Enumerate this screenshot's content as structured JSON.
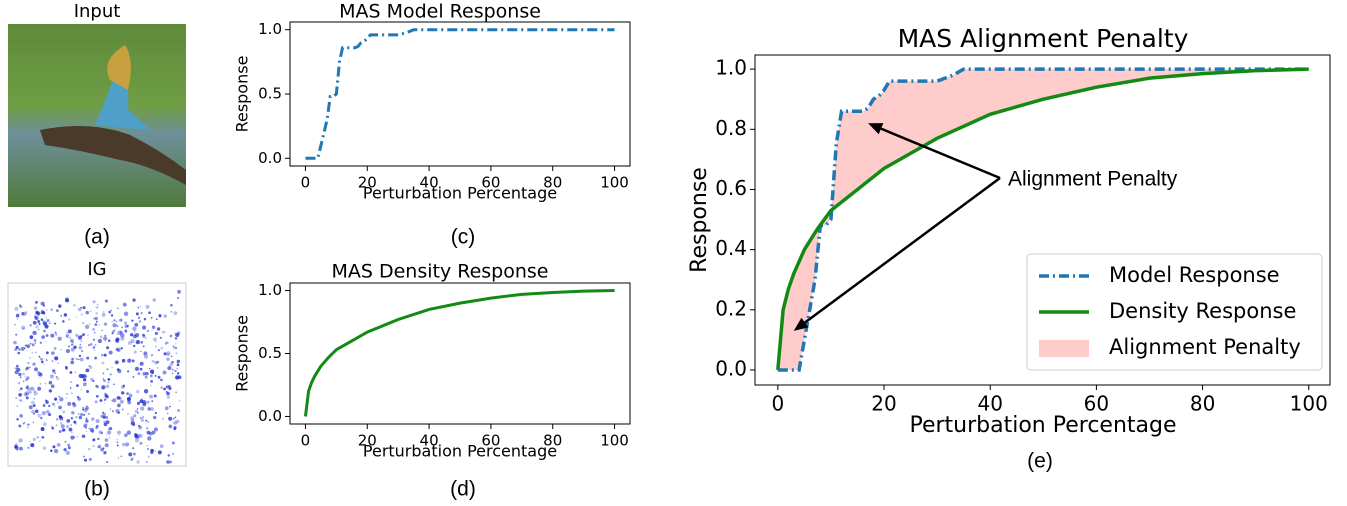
{
  "panels": {
    "a": {
      "title": "Input",
      "caption": "(a)"
    },
    "b": {
      "title": "IG",
      "caption": "(b)"
    }
  },
  "chart_data": [
    {
      "type": "line",
      "title": "MAS Model Response",
      "caption": "(c)",
      "x_label": "Perturbation Percentage",
      "y_label": "Response",
      "xlim": [
        -5,
        105
      ],
      "ylim": [
        -0.06,
        1.06
      ],
      "xticks": [
        0,
        20,
        40,
        60,
        80,
        100
      ],
      "yticks": [
        {
          "value": 0,
          "label": "0.0"
        },
        0.5,
        {
          "value": 1,
          "label": "1.0"
        }
      ],
      "series": [
        {
          "name": "Model Response",
          "color": "#1f77b4",
          "linestyle": "dashdot",
          "x": [
            0,
            4,
            5,
            6,
            7,
            8,
            9,
            10,
            11,
            12,
            16,
            17,
            18,
            19,
            20,
            21,
            30,
            33,
            35,
            100
          ],
          "values": [
            0,
            0,
            0.1,
            0.2,
            0.3,
            0.48,
            0.48,
            0.5,
            0.75,
            0.86,
            0.86,
            0.87,
            0.9,
            0.91,
            0.93,
            0.96,
            0.96,
            0.98,
            1.0,
            1.0
          ]
        }
      ]
    },
    {
      "type": "line",
      "title": "MAS Density Response",
      "caption": "(d)",
      "x_label": "Perturbation Percentage",
      "y_label": "Response",
      "xlim": [
        -5,
        105
      ],
      "ylim": [
        -0.06,
        1.06
      ],
      "xticks": [
        0,
        20,
        40,
        60,
        80,
        100
      ],
      "yticks": [
        {
          "value": 0,
          "label": "0.0"
        },
        0.5,
        {
          "value": 1,
          "label": "1.0"
        }
      ],
      "series": [
        {
          "name": "Density Response",
          "color": "#138a13",
          "linestyle": "solid",
          "x": [
            0,
            1,
            2,
            3,
            5,
            7.5,
            10,
            15,
            20,
            25,
            30,
            40,
            50,
            60,
            70,
            80,
            90,
            100
          ],
          "values": [
            0,
            0.2,
            0.27,
            0.32,
            0.4,
            0.47,
            0.53,
            0.6,
            0.67,
            0.72,
            0.77,
            0.85,
            0.9,
            0.94,
            0.97,
            0.985,
            0.995,
            1.0
          ]
        }
      ]
    },
    {
      "type": "line",
      "title": "MAS Alignment Penalty",
      "caption": "(e)",
      "x_label": "Perturbation Percentage",
      "y_label": "Response",
      "xlim": [
        -4.3,
        104
      ],
      "ylim": [
        -0.05,
        1.047
      ],
      "xticks": [
        0,
        20,
        40,
        60,
        80,
        100
      ],
      "yticks": [
        {
          "value": 0,
          "label": "0.0"
        },
        0.2,
        0.4,
        0.6,
        0.8,
        {
          "value": 1,
          "label": "1.0"
        }
      ],
      "legend": "lower right",
      "annotation": "Alignment Penalty",
      "fill_between": {
        "name": "Alignment Penalty",
        "color": "#ffcccc",
        "series": [
          0,
          1
        ]
      },
      "series": [
        {
          "name": "Model Response",
          "color": "#1f77b4",
          "linestyle": "dashdot",
          "x": [
            0,
            4,
            5,
            6,
            7,
            8,
            9,
            10,
            11,
            12,
            16,
            17,
            18,
            19,
            20,
            21,
            30,
            33,
            35,
            100
          ],
          "values": [
            0,
            0,
            0.1,
            0.2,
            0.3,
            0.48,
            0.48,
            0.5,
            0.75,
            0.86,
            0.86,
            0.87,
            0.9,
            0.91,
            0.93,
            0.96,
            0.96,
            0.98,
            1.0,
            1.0
          ]
        },
        {
          "name": "Density Response",
          "color": "#138a13",
          "linestyle": "solid",
          "x": [
            0,
            1,
            2,
            3,
            5,
            7.5,
            10,
            15,
            20,
            25,
            30,
            40,
            50,
            60,
            70,
            80,
            90,
            100
          ],
          "values": [
            0,
            0.2,
            0.27,
            0.32,
            0.4,
            0.47,
            0.53,
            0.6,
            0.67,
            0.72,
            0.77,
            0.85,
            0.9,
            0.94,
            0.97,
            0.985,
            0.995,
            1.0
          ]
        }
      ]
    }
  ]
}
